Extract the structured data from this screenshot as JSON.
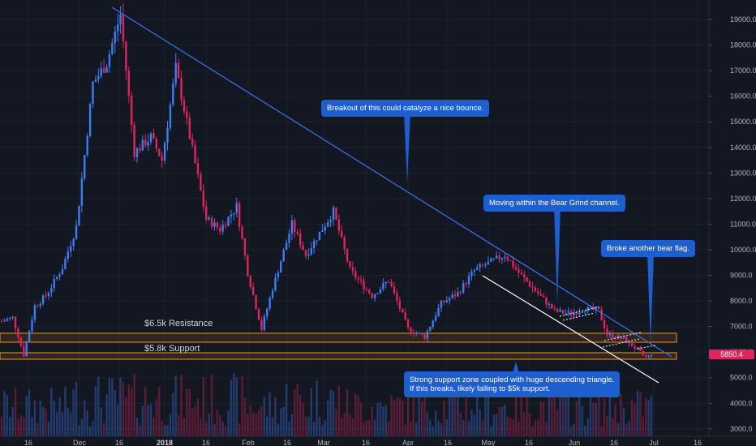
{
  "chart_data": {
    "type": "candlestick",
    "title": "",
    "y_axis": {
      "ticks": [
        "19000.0",
        "18000.0",
        "17000.0",
        "16000.0",
        "15000.0",
        "14000.0",
        "13000.0",
        "12000.0",
        "11000.0",
        "10000.0",
        "9000.0",
        "8000.0",
        "7000.0",
        "6000.0",
        "5000.0",
        "4000.0",
        "3000.0"
      ],
      "range": [
        2800,
        19700
      ],
      "scale": "linear",
      "position": "right"
    },
    "x_axis": {
      "labels": [
        "16",
        "Dec",
        "16",
        "2018",
        "16",
        "Feb",
        "16",
        "Mar",
        "16",
        "Apr",
        "16",
        "May",
        "16",
        "Jun",
        "16",
        "Jul",
        "16"
      ],
      "bold_labels": [
        "2018"
      ]
    },
    "price_series": {
      "name": "",
      "interval": "daily",
      "up_color": "#3f7df5",
      "down_color": "#e0245e",
      "approx_close_path": [
        [
          "Nov 4",
          7200
        ],
        [
          "Nov 8",
          7350
        ],
        [
          "Nov 12",
          5900
        ],
        [
          "Nov 16",
          7800
        ],
        [
          "Nov 20",
          8200
        ],
        [
          "Nov 26",
          9300
        ],
        [
          "Dec 1",
          10900
        ],
        [
          "Dec 7",
          16500
        ],
        [
          "Dec 12",
          17300
        ],
        [
          "Dec 17",
          19200
        ],
        [
          "Dec 22",
          13800
        ],
        [
          "Dec 28",
          14400
        ],
        [
          "Jan 1",
          13500
        ],
        [
          "Jan 6",
          17100
        ],
        [
          "Jan 12",
          13900
        ],
        [
          "Jan 17",
          11200
        ],
        [
          "Jan 22",
          10800
        ],
        [
          "Jan 28",
          11700
        ],
        [
          "Feb 1",
          9100
        ],
        [
          "Feb 6",
          6900
        ],
        [
          "Feb 10",
          8500
        ],
        [
          "Feb 17",
          11000
        ],
        [
          "Feb 22",
          9800
        ],
        [
          "Mar 4",
          11500
        ],
        [
          "Mar 10",
          9200
        ],
        [
          "Mar 18",
          8200
        ],
        [
          "Mar 24",
          8800
        ],
        [
          "Mar 31",
          6900
        ],
        [
          "Apr 6",
          6600
        ],
        [
          "Apr 12",
          7900
        ],
        [
          "Apr 18",
          8300
        ],
        [
          "Apr 24",
          9200
        ],
        [
          "May 5",
          9800
        ],
        [
          "May 10",
          9100
        ],
        [
          "May 16",
          8400
        ],
        [
          "May 23",
          7600
        ],
        [
          "May 29",
          7500
        ],
        [
          "Jun 3",
          7700
        ],
        [
          "Jun 8",
          7600
        ],
        [
          "Jun 11",
          6700
        ],
        [
          "Jun 17",
          6500
        ],
        [
          "Jun 22",
          6100
        ],
        [
          "Jun 24",
          5800
        ],
        [
          "Jun 27",
          5850
        ]
      ]
    },
    "volume_series": {
      "name": "",
      "note": "volume bars at bottom, colored by candle direction"
    },
    "last_price_label": "5850.4",
    "zones": [
      {
        "label": "$6.5k Resistance",
        "low": 6150,
        "high": 6450,
        "color": "#f7931a"
      },
      {
        "label": "$5.8k Support",
        "low": 5720,
        "high": 5980,
        "color": "#f7931a"
      }
    ],
    "annotations": [
      {
        "text": "Breakout of this could catalyze a nice bounce."
      },
      {
        "text": "Moving within the Bear Grind channel."
      },
      {
        "text": "Broke another bear flag."
      },
      {
        "text": "Strong support zone coupled with huge descending triangle.\nIf this breaks, likely falling to $5k support."
      }
    ],
    "trendlines": [
      {
        "kind": "descending resistance",
        "color": "#3a6ee8"
      },
      {
        "kind": "bear grind channel lower line",
        "color": "#ffffff"
      },
      {
        "kind": "bear flag (dotted)",
        "color": "#ffffff"
      }
    ],
    "grid": true,
    "legend": "none"
  }
}
